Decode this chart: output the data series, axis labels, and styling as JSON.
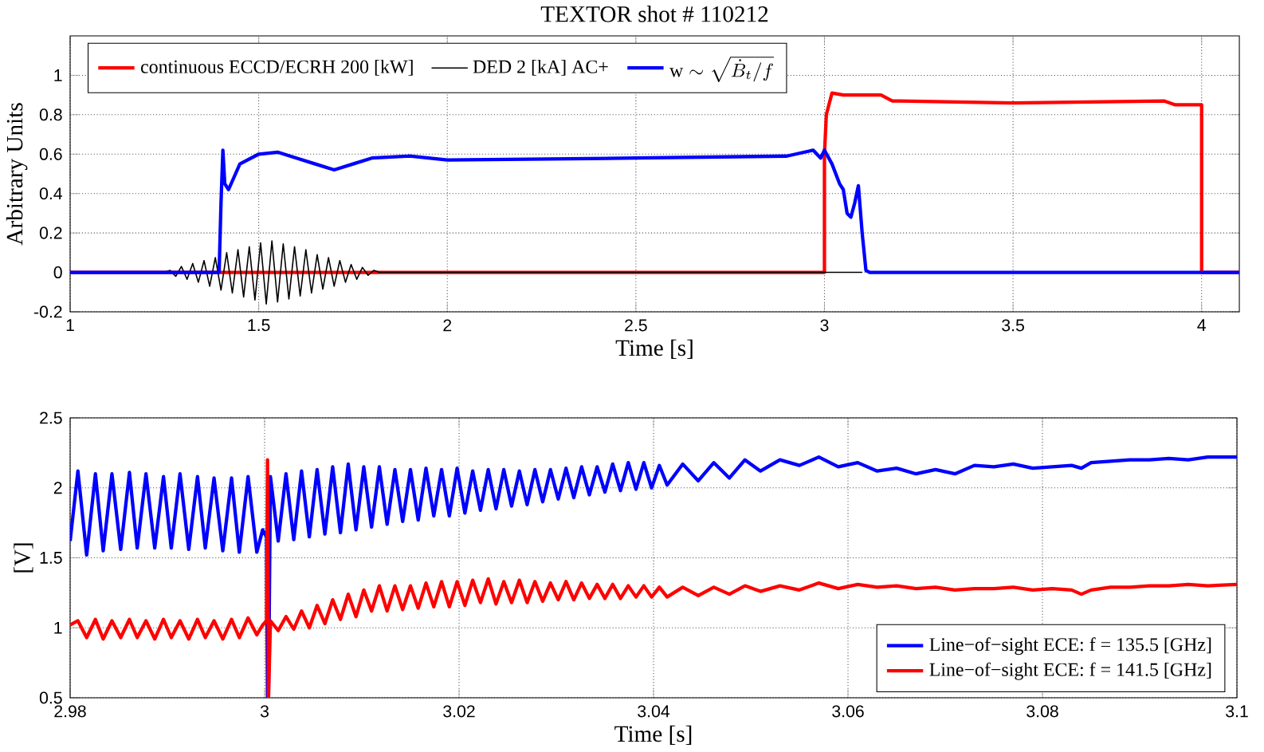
{
  "chart_data": [
    {
      "type": "line",
      "title": "TEXTOR shot # 110212",
      "xlabel": "Time [s]",
      "ylabel": "Arbitrary Units",
      "xlim": [
        1,
        4.1
      ],
      "ylim": [
        -0.2,
        1.2
      ],
      "xticks": [
        1,
        1.5,
        2,
        2.5,
        3,
        3.5,
        4
      ],
      "yticks": [
        -0.2,
        0,
        0.2,
        0.4,
        0.6,
        0.8,
        1
      ],
      "grid": true,
      "legend": "top left",
      "series": [
        {
          "name": "continuous ECCD/ECRH 200 [kW]",
          "color": "#ff0000",
          "x": [
            1,
            3.0,
            3.0,
            3.005,
            3.02,
            3.05,
            3.1,
            3.15,
            3.18,
            3.2,
            3.5,
            3.9,
            3.93,
            3.99,
            4.0,
            4.0,
            4.1
          ],
          "values": [
            0,
            0,
            0.6,
            0.8,
            0.91,
            0.9,
            0.9,
            0.9,
            0.87,
            0.87,
            0.86,
            0.87,
            0.85,
            0.85,
            0.85,
            0,
            0
          ]
        },
        {
          "name": "DED 2 [kA] AC+",
          "color": "#000000",
          "x": [
            1.0,
            1.25,
            1.265,
            1.28,
            1.295,
            1.31,
            1.325,
            1.34,
            1.355,
            1.37,
            1.385,
            1.4,
            1.415,
            1.43,
            1.445,
            1.46,
            1.475,
            1.49,
            1.505,
            1.52,
            1.535,
            1.55,
            1.565,
            1.58,
            1.595,
            1.61,
            1.625,
            1.64,
            1.655,
            1.67,
            1.685,
            1.7,
            1.715,
            1.73,
            1.745,
            1.76,
            1.775,
            1.79,
            1.805,
            1.82,
            3.1
          ],
          "values": [
            0,
            0,
            0.01,
            -0.02,
            0.03,
            -0.035,
            0.045,
            -0.05,
            0.06,
            -0.07,
            0.075,
            -0.09,
            0.1,
            -0.105,
            0.115,
            -0.125,
            0.13,
            -0.14,
            0.15,
            -0.16,
            0.16,
            -0.15,
            0.145,
            -0.135,
            0.13,
            -0.12,
            0.115,
            -0.105,
            0.09,
            -0.085,
            0.075,
            -0.07,
            0.06,
            -0.05,
            0.04,
            -0.035,
            0.025,
            -0.015,
            0.01,
            0,
            0
          ]
        },
        {
          "name": "\\mathrm{w} \\sim \\sqrt{\\dot{B}_t/f}",
          "color": "#0000ff",
          "x": [
            1,
            1.395,
            1.4,
            1.405,
            1.41,
            1.42,
            1.45,
            1.5,
            1.55,
            1.6,
            1.65,
            1.7,
            1.75,
            1.8,
            1.9,
            2.0,
            2.5,
            2.9,
            2.97,
            2.99,
            3.0,
            3.02,
            3.04,
            3.05,
            3.06,
            3.07,
            3.08,
            3.09,
            3.1,
            3.11,
            3.12,
            4.1
          ],
          "values": [
            0,
            0,
            0.35,
            0.62,
            0.45,
            0.42,
            0.55,
            0.6,
            0.61,
            0.58,
            0.55,
            0.52,
            0.55,
            0.58,
            0.59,
            0.57,
            0.58,
            0.59,
            0.62,
            0.58,
            0.62,
            0.55,
            0.45,
            0.42,
            0.3,
            0.28,
            0.35,
            0.44,
            0.2,
            0.01,
            0,
            0
          ]
        }
      ]
    },
    {
      "type": "line",
      "xlabel": "Time [s]",
      "ylabel": "[V]",
      "xlim": [
        2.98,
        3.1
      ],
      "ylim": [
        0.5,
        2.5
      ],
      "xticks": [
        2.98,
        3,
        3.02,
        3.04,
        3.06,
        3.08,
        3.1
      ],
      "yticks": [
        0.5,
        1,
        1.5,
        2,
        2.5
      ],
      "grid": true,
      "legend": "bottom right",
      "x": [
        2.98,
        2.9808,
        2.9817,
        2.9826,
        2.9834,
        2.9843,
        2.9852,
        2.9861,
        2.9869,
        2.9878,
        2.9887,
        2.9896,
        2.9904,
        2.9913,
        2.9922,
        2.9931,
        2.9939,
        2.9948,
        2.9957,
        2.9966,
        2.9974,
        2.9983,
        2.9992,
        2.9998,
        3.0002,
        3.0003,
        3.0004,
        3.0006,
        3.0014,
        3.0022,
        3.003,
        3.0038,
        3.0046,
        3.0054,
        3.0062,
        3.007,
        3.0078,
        3.0086,
        3.0094,
        3.0102,
        3.011,
        3.0118,
        3.0126,
        3.0134,
        3.0142,
        3.015,
        3.0158,
        3.0166,
        3.0174,
        3.0182,
        3.019,
        3.0198,
        3.0206,
        3.0214,
        3.0222,
        3.023,
        3.0238,
        3.0246,
        3.0254,
        3.0262,
        3.027,
        3.0278,
        3.0286,
        3.0294,
        3.0302,
        3.031,
        3.0318,
        3.0326,
        3.0334,
        3.0342,
        3.035,
        3.0358,
        3.0366,
        3.0374,
        3.0382,
        3.039,
        3.0398,
        3.0406,
        3.0414,
        3.043,
        3.0446,
        3.0462,
        3.0478,
        3.0494,
        3.051,
        3.053,
        3.055,
        3.057,
        3.059,
        3.061,
        3.063,
        3.065,
        3.067,
        3.069,
        3.071,
        3.073,
        3.075,
        3.077,
        3.079,
        3.081,
        3.083,
        3.084,
        3.085,
        3.087,
        3.089,
        3.091,
        3.093,
        3.095,
        3.097,
        3.1
      ],
      "series": [
        {
          "name": "Line−of−sight ECE: f = 135.5 [GHz]",
          "color": "#0000ff",
          "values": [
            1.62,
            2.12,
            1.52,
            2.1,
            1.55,
            2.1,
            1.56,
            2.11,
            1.57,
            2.1,
            1.57,
            2.08,
            1.57,
            2.1,
            1.56,
            2.08,
            1.57,
            2.07,
            1.55,
            2.07,
            1.54,
            2.08,
            1.54,
            1.7,
            1.65,
            0.5,
            0.5,
            2.08,
            1.62,
            2.1,
            1.63,
            2.12,
            1.65,
            2.13,
            1.67,
            2.15,
            1.68,
            2.17,
            1.7,
            2.15,
            1.72,
            2.15,
            1.74,
            2.13,
            1.76,
            2.13,
            1.77,
            2.14,
            1.8,
            2.13,
            1.8,
            2.14,
            1.82,
            2.12,
            1.84,
            2.13,
            1.85,
            2.13,
            1.87,
            2.12,
            1.88,
            2.13,
            1.9,
            2.13,
            1.92,
            2.14,
            1.93,
            2.15,
            1.95,
            2.15,
            1.97,
            2.17,
            1.98,
            2.18,
            1.99,
            2.18,
            2.0,
            2.16,
            2.02,
            2.17,
            2.05,
            2.18,
            2.07,
            2.2,
            2.12,
            2.2,
            2.16,
            2.22,
            2.15,
            2.18,
            2.12,
            2.14,
            2.1,
            2.13,
            2.1,
            2.16,
            2.15,
            2.17,
            2.14,
            2.15,
            2.16,
            2.14,
            2.18,
            2.19,
            2.2,
            2.2,
            2.21,
            2.2,
            2.22,
            2.22
          ]
        },
        {
          "name": "Line−of−sight ECE: f = 141.5 [GHz]",
          "color": "#ff0000",
          "values": [
            1.02,
            1.05,
            0.93,
            1.06,
            0.92,
            1.05,
            0.93,
            1.06,
            0.93,
            1.05,
            0.92,
            1.06,
            0.93,
            1.05,
            0.92,
            1.06,
            0.93,
            1.05,
            0.92,
            1.06,
            0.93,
            1.07,
            0.95,
            1.02,
            1.05,
            2.2,
            0.5,
            1.05,
            0.98,
            1.08,
            0.99,
            1.12,
            1.0,
            1.16,
            1.03,
            1.2,
            1.06,
            1.24,
            1.08,
            1.27,
            1.12,
            1.3,
            1.12,
            1.3,
            1.13,
            1.3,
            1.14,
            1.32,
            1.15,
            1.33,
            1.15,
            1.33,
            1.16,
            1.34,
            1.18,
            1.35,
            1.17,
            1.33,
            1.18,
            1.34,
            1.18,
            1.33,
            1.19,
            1.32,
            1.2,
            1.33,
            1.2,
            1.32,
            1.21,
            1.31,
            1.21,
            1.31,
            1.21,
            1.3,
            1.22,
            1.3,
            1.22,
            1.29,
            1.22,
            1.29,
            1.23,
            1.29,
            1.24,
            1.3,
            1.26,
            1.3,
            1.27,
            1.32,
            1.28,
            1.31,
            1.29,
            1.3,
            1.28,
            1.29,
            1.27,
            1.28,
            1.28,
            1.29,
            1.27,
            1.28,
            1.27,
            1.24,
            1.27,
            1.29,
            1.29,
            1.3,
            1.3,
            1.31,
            1.3,
            1.31
          ]
        }
      ]
    }
  ]
}
